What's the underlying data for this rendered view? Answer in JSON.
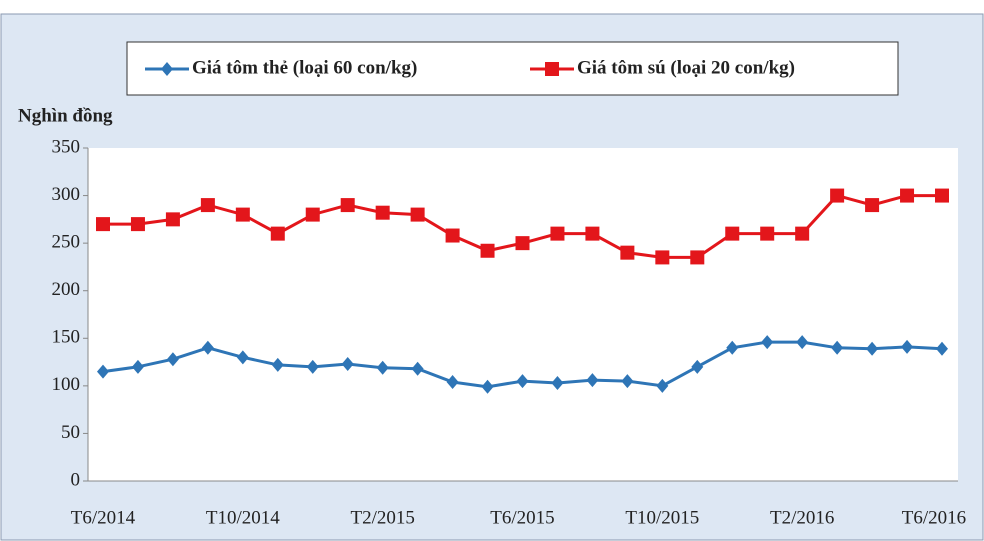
{
  "chart_data": {
    "type": "line",
    "y_label": "Nghìn đồng",
    "categories": [
      "T6/2014",
      null,
      null,
      null,
      "T10/2014",
      null,
      null,
      null,
      "T2/2015",
      null,
      null,
      null,
      "T6/2015",
      null,
      null,
      null,
      "T10/2015",
      null,
      null,
      null,
      "T2/2016",
      null,
      null,
      null,
      "T6/2016"
    ],
    "series": [
      {
        "name": "Giá tôm thẻ (loại 60 con/kg)",
        "color": "#2e75b6",
        "marker": "diamond",
        "values": [
          115,
          120,
          128,
          140,
          130,
          122,
          120,
          123,
          119,
          118,
          104,
          99,
          105,
          103,
          106,
          105,
          100,
          120,
          140,
          146,
          146,
          140,
          139,
          141,
          139
        ]
      },
      {
        "name": "Giá tôm sú (loại 20 con/kg)",
        "color": "#e3161b",
        "marker": "square",
        "values": [
          270,
          270,
          275,
          290,
          280,
          260,
          280,
          290,
          282,
          280,
          258,
          242,
          250,
          260,
          260,
          240,
          235,
          235,
          260,
          260,
          260,
          300,
          290,
          300,
          300
        ]
      }
    ],
    "ylim": [
      0,
      350
    ],
    "yticks": [
      0,
      50,
      100,
      150,
      200,
      250,
      300,
      350
    ],
    "grid": false,
    "legend": "top"
  }
}
